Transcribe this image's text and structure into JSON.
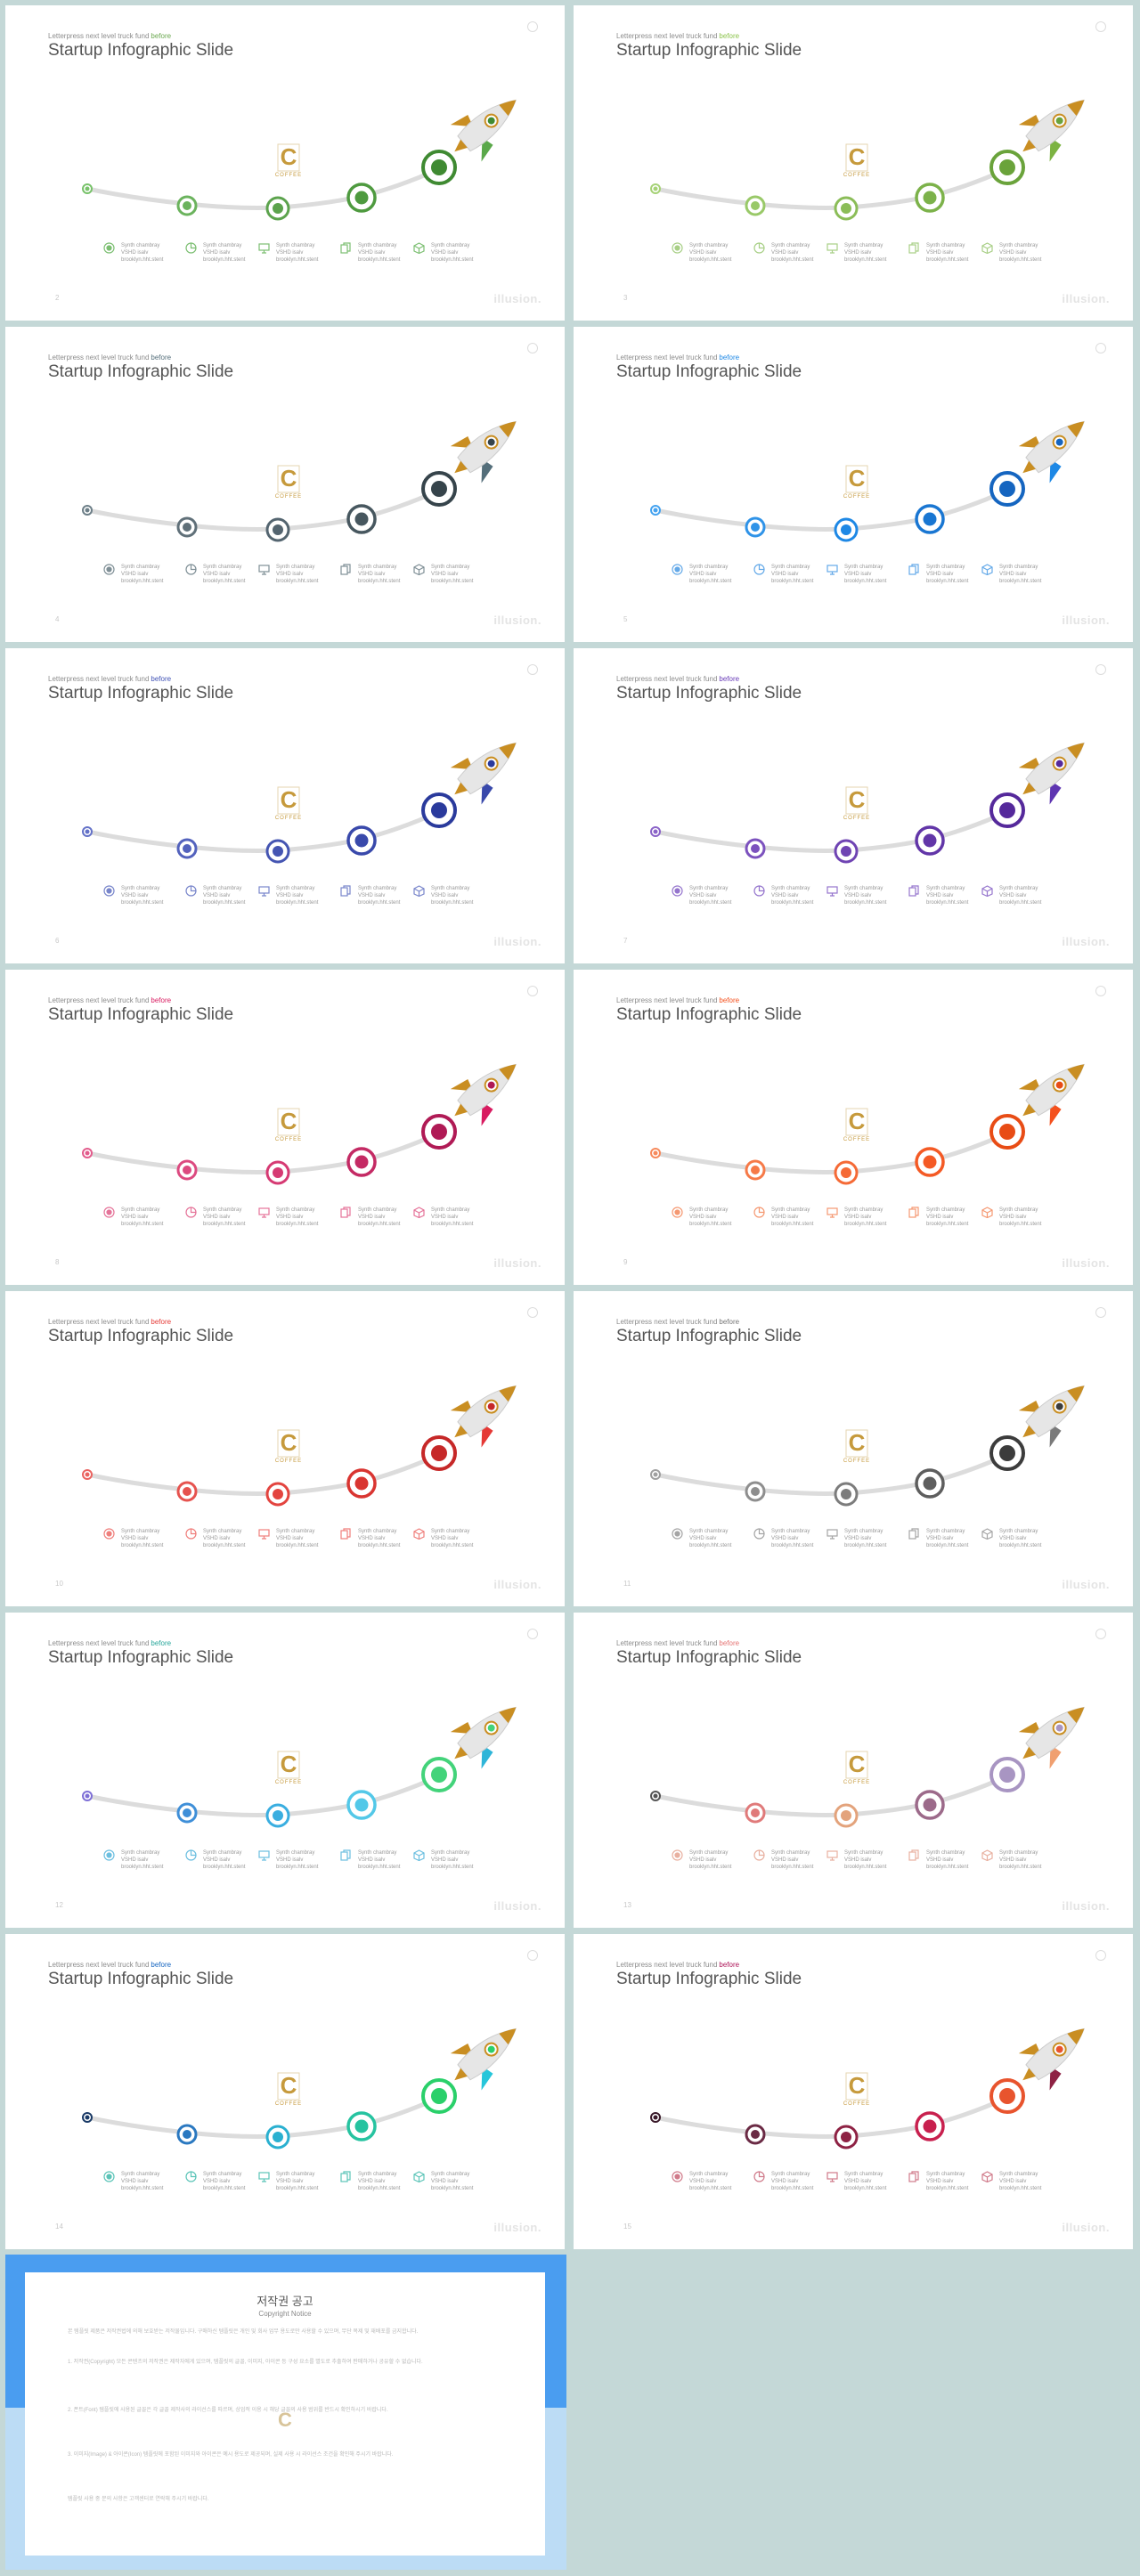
{
  "slide_common": {
    "tagline_prefix": "Letterpress next level truck fund",
    "tagline_highlight": "before",
    "title": "Startup Infographic Slide",
    "brand": "illusion.",
    "logo_letter": "C",
    "logo_sub": "COFFEE",
    "legend": [
      {
        "icon": "target-icon",
        "line1": "Synth chambray",
        "line2": "VSHD isalv",
        "line3": "brooklyn.hht.stent"
      },
      {
        "icon": "chart-circle-icon",
        "line1": "Synth chambray",
        "line2": "VSHD isalv",
        "line3": "brooklyn.hht.stent"
      },
      {
        "icon": "monitor-icon",
        "line1": "Synth chambray",
        "line2": "VSHD isalv",
        "line3": "brooklyn.hht.stent"
      },
      {
        "icon": "copy-icon",
        "line1": "Synth chambray",
        "line2": "VSHD isalv",
        "line3": "brooklyn.hht.stent"
      },
      {
        "icon": "box-icon",
        "line1": "Synth chambray",
        "line2": "VSHD isalv",
        "line3": "brooklyn.hht.stent"
      }
    ]
  },
  "slides": [
    {
      "page": "2",
      "tagline_color": "#6aa84f",
      "colors": [
        "#78c26a",
        "#6bb35d",
        "#5ca34d",
        "#4e9a3f",
        "#3f8a32"
      ],
      "fin_color": "#5aa84a",
      "legend_color": "#7cbf72"
    },
    {
      "page": "3",
      "tagline_color": "#8bc34a",
      "colors": [
        "#a6d277",
        "#99c968",
        "#8bbd58",
        "#7cb24a",
        "#6aa33b"
      ],
      "fin_color": "#7cb342",
      "legend_color": "#a8cf86"
    },
    {
      "page": "4",
      "tagline_color": "#546e7a",
      "colors": [
        "#6d7f88",
        "#607079",
        "#546570",
        "#47575f",
        "#36444b"
      ],
      "fin_color": "#546e7a",
      "legend_color": "#7f8f96"
    },
    {
      "page": "5",
      "tagline_color": "#1e88e5",
      "colors": [
        "#45a3f0",
        "#2f93e8",
        "#1e88e5",
        "#1976d2",
        "#1565c0"
      ],
      "fin_color": "#1e88e5",
      "legend_color": "#64a9e8"
    },
    {
      "page": "6",
      "tagline_color": "#3f51b5",
      "colors": [
        "#6472c8",
        "#5362bd",
        "#4555b2",
        "#3949ab",
        "#2a3a9c"
      ],
      "fin_color": "#3949ab",
      "legend_color": "#7986cb"
    },
    {
      "page": "7",
      "tagline_color": "#673ab7",
      "colors": [
        "#8a63c8",
        "#7c52be",
        "#6f44b3",
        "#6236a8",
        "#55299b"
      ],
      "fin_color": "#5e35b1",
      "legend_color": "#9575cd"
    },
    {
      "page": "8",
      "tagline_color": "#d81b60",
      "colors": [
        "#e25c8c",
        "#dc4a80",
        "#d63a73",
        "#c42a64",
        "#b01a55"
      ],
      "fin_color": "#d81b60",
      "legend_color": "#e57399"
    },
    {
      "page": "9",
      "tagline_color": "#f4511e",
      "colors": [
        "#f78a5c",
        "#f67a48",
        "#f56a36",
        "#f45a25",
        "#e84c15"
      ],
      "fin_color": "#f4511e",
      "legend_color": "#f59871"
    },
    {
      "page": "10",
      "tagline_color": "#e53935",
      "colors": [
        "#ea6360",
        "#e6534f",
        "#e3443f",
        "#d93531",
        "#c62828"
      ],
      "fin_color": "#e53935",
      "legend_color": "#ef7f7c"
    },
    {
      "page": "11",
      "tagline_color": "#757575",
      "colors": [
        "#a0a0a0",
        "#8e8e8e",
        "#7c7c7c",
        "#5e5e5e",
        "#3c3c3c"
      ],
      "fin_color": "#7a7a7a",
      "legend_color": "#a5a5a5"
    },
    {
      "page": "12",
      "tagline_color": "#26a69a",
      "colors": [
        "#7e6fd6",
        "#3f8fd8",
        "#3aaee0",
        "#53c8e8",
        "#43d37a"
      ],
      "fin_color": "#2fb5d8",
      "legend_color": "#6cbfe0"
    },
    {
      "page": "13",
      "tagline_color": "#e57373",
      "colors": [
        "#555555",
        "#e07a7a",
        "#e3a37c",
        "#9c6a8a",
        "#a895c2"
      ],
      "fin_color": "#f0a070",
      "legend_color": "#e8b0a0"
    },
    {
      "page": "14",
      "tagline_color": "#1565c0",
      "colors": [
        "#1a3a66",
        "#2a78c0",
        "#2ab0d0",
        "#26c3a0",
        "#2ad06a"
      ],
      "fin_color": "#26c6da",
      "legend_color": "#5cc4b8"
    },
    {
      "page": "15",
      "tagline_color": "#ad1457",
      "colors": [
        "#3a1a2a",
        "#6a2a44",
        "#8e2244",
        "#c8204e",
        "#e8542e"
      ],
      "fin_color": "#8e2244",
      "legend_color": "#d07a8a"
    }
  ],
  "copyright": {
    "title": "저작권 공고",
    "subtitle": "Copyright Notice",
    "logo_letter": "C",
    "paragraphs": [
      "본 템플릿 제품은 저작권법에 의해 보호받는 저작물입니다. 구매하신 템플릿은 개인 및 회사 업무 용도로만 사용할 수 있으며, 무단 복제 및 재배포를 금지합니다.",
      "1. 저작권(Copyright) 모든 콘텐츠의 저작권은 제작자에게 있으며, 템플릿의 글꼴, 이미지, 아이콘 등 구성 요소를 별도로 추출하여 판매하거나 공유할 수 없습니다.",
      "2. 폰트(Font) 템플릿에 사용된 글꼴은 각 글꼴 제작사의 라이선스를 따르며, 상업적 이용 시 해당 글꼴의 사용 범위를 반드시 확인하시기 바랍니다.",
      "3. 이미지(Image) & 아이콘(Icon) 템플릿에 포함된 이미지와 아이콘은 예시 용도로 제공되며, 실제 사용 시 라이선스 조건을 확인해 주시기 바랍니다.",
      "템플릿 사용 중 문의 사항은 고객센터로 연락해 주시기 바랍니다."
    ]
  }
}
